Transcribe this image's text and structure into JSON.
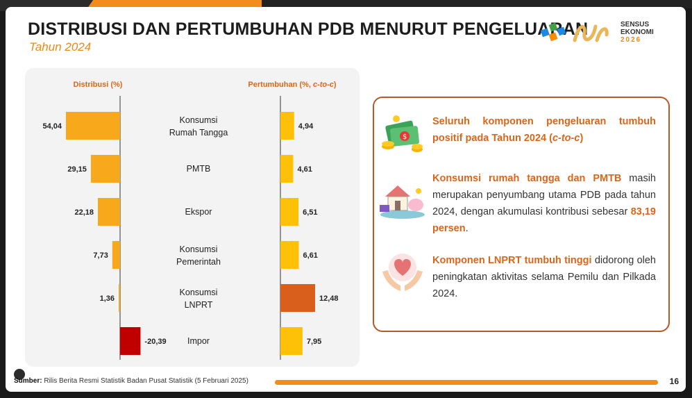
{
  "slide": {
    "title": "DISTRIBUSI DAN PERTUMBUHAN PDB MENURUT PENGELUARAN",
    "subtitle": "Tahun 2024",
    "logo": {
      "line1": "SENSUS",
      "line2": "EKONOMI",
      "year": "2026"
    },
    "footer": {
      "source_label": "Sumber:",
      "source_text": " Rilis Berita Resmi Statistik Badan Pusat Statistik (5 Februari 2025)",
      "page": "16"
    }
  },
  "chart_data": {
    "type": "bar",
    "left_header": "Distribusi (%)",
    "right_header_prefix": "Pertumbuhan (%, ",
    "right_header_italic": "c-to-c",
    "right_header_suffix": ")",
    "categories": [
      {
        "line1": "Konsumsi",
        "line2": "Rumah Tangga"
      },
      {
        "line1": "PMTB",
        "line2": ""
      },
      {
        "line1": "Ekspor",
        "line2": ""
      },
      {
        "line1": "Konsumsi",
        "line2": "Pemerintah"
      },
      {
        "line1": "Konsumsi",
        "line2": "LNPRT"
      },
      {
        "line1": "Impor",
        "line2": ""
      }
    ],
    "distribution": {
      "values": [
        54.04,
        29.15,
        22.18,
        7.73,
        1.36,
        -20.39
      ],
      "labels": [
        "54,04",
        "29,15",
        "22,18",
        "7,73",
        "1,36",
        "-20,39"
      ]
    },
    "growth": {
      "values": [
        4.94,
        4.61,
        6.51,
        6.61,
        12.48,
        7.95
      ],
      "labels": [
        "4,94",
        "4,61",
        "6,51",
        "6,61",
        "12,48",
        "7,95"
      ]
    },
    "colors": {
      "distribution_positive": "#f7a81b",
      "distribution_negative": "#c00000",
      "growth_normal": "#ffc107",
      "growth_highlight": "#d9601c",
      "axis": "#333333"
    }
  },
  "info": [
    {
      "icon": "money-coins-icon",
      "highlight": "Seluruh komponen pengeluaran tumbuh positif pada Tahun 2024 (",
      "highlight_italic": "c-to-c",
      "highlight_end": ")",
      "text": ""
    },
    {
      "icon": "house-savings-icon",
      "highlight": "Konsumsi rumah tangga dan PMTB",
      "text": " masih merupakan penyumbang utama PDB pada tahun 2024, dengan akumulasi kontribusi sebesar ",
      "highlight2": "83,19 persen",
      "text_end": "."
    },
    {
      "icon": "heart-hands-icon",
      "highlight": "Komponen LNPRT tumbuh tinggi",
      "text": " didorong oleh peningkatan aktivitas selama Pemilu dan Pilkada 2024."
    }
  ]
}
